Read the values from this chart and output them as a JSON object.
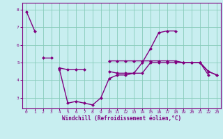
{
  "x": [
    0,
    1,
    2,
    3,
    4,
    5,
    6,
    7,
    8,
    9,
    10,
    11,
    12,
    13,
    14,
    15,
    16,
    17,
    18,
    19,
    20,
    21,
    22,
    23
  ],
  "line1": [
    7.9,
    6.8,
    null,
    null,
    4.6,
    2.7,
    2.8,
    2.7,
    2.6,
    3.0,
    4.1,
    4.3,
    4.3,
    4.4,
    5.0,
    5.8,
    6.7,
    6.8,
    6.8,
    null,
    null,
    5.0,
    4.5,
    4.3
  ],
  "line3": [
    null,
    null,
    null,
    null,
    4.7,
    4.6,
    4.6,
    4.6,
    null,
    null,
    4.5,
    4.4,
    4.4,
    4.4,
    4.4,
    5.0,
    5.0,
    5.0,
    5.0,
    5.0,
    5.0,
    5.0,
    4.3,
    null
  ],
  "line4": [
    null,
    null,
    5.3,
    5.3,
    null,
    null,
    null,
    null,
    null,
    null,
    5.1,
    5.1,
    5.1,
    5.1,
    5.1,
    5.1,
    5.1,
    5.1,
    5.1,
    5.0,
    5.0,
    5.0,
    4.5,
    4.3
  ],
  "color": "#800080",
  "bg_color": "#c8eef0",
  "grid_color": "#88ccbb",
  "xlabel": "Windchill (Refroidissement éolien,°C)",
  "ylim": [
    2.4,
    8.4
  ],
  "xlim": [
    -0.5,
    23.5
  ],
  "yticks": [
    3,
    4,
    5,
    6,
    7,
    8
  ],
  "xticks": [
    0,
    1,
    2,
    3,
    4,
    5,
    6,
    7,
    8,
    9,
    10,
    11,
    12,
    13,
    14,
    15,
    16,
    17,
    18,
    19,
    20,
    21,
    22,
    23
  ]
}
